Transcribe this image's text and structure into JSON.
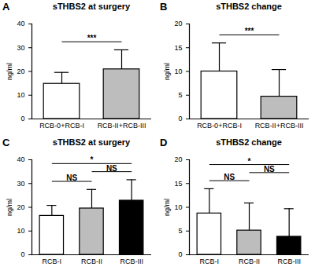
{
  "chart_data": [
    {
      "type": "bar",
      "panel": "A",
      "title": "sTHBS2 at surgery",
      "y_label": "ng/ml",
      "categories": [
        "RCB-0+RCB-I",
        "RCB-II+RCB-III"
      ],
      "values": [
        14.8,
        20.9
      ],
      "errors": [
        4.8,
        8.2
      ],
      "colors": [
        "#ffffff",
        "#bdbdbd"
      ],
      "ylim": [
        0,
        40
      ],
      "yticks": [
        0,
        10,
        20,
        30,
        40
      ],
      "annotations": [
        {
          "text": "***",
          "from": "RCB-0+RCB-I",
          "to": "RCB-II+RCB-III"
        }
      ]
    },
    {
      "type": "bar",
      "panel": "B",
      "title": "sTHBS2 change",
      "y_label": "ng/ml",
      "categories": [
        "RCB-0+RCB-I",
        "RCB-II+RCB-III"
      ],
      "values": [
        10.0,
        4.7
      ],
      "errors": [
        6.0,
        5.7
      ],
      "colors": [
        "#ffffff",
        "#bdbdbd"
      ],
      "ylim": [
        0,
        20
      ],
      "yticks": [
        0,
        5,
        10,
        15,
        20
      ],
      "annotations": [
        {
          "text": "***",
          "from": "RCB-0+RCB-I",
          "to": "RCB-II+RCB-III"
        }
      ]
    },
    {
      "type": "bar",
      "panel": "C",
      "title": "sTHBS2 at surgery",
      "y_label": "ng/ml",
      "categories": [
        "RCB-I",
        "RCB-II",
        "RCB-III"
      ],
      "values": [
        16.4,
        19.5,
        22.8
      ],
      "errors": [
        4.4,
        8.0,
        8.8
      ],
      "colors": [
        "#ffffff",
        "#bdbdbd",
        "#000000"
      ],
      "ylim": [
        0,
        40
      ],
      "yticks": [
        0,
        10,
        20,
        30,
        40
      ],
      "annotations": [
        {
          "text": "NS",
          "from": "RCB-I",
          "to": "RCB-II"
        },
        {
          "text": "NS",
          "from": "RCB-II",
          "to": "RCB-III"
        },
        {
          "text": "*",
          "from": "RCB-I",
          "to": "RCB-III"
        }
      ]
    },
    {
      "type": "bar",
      "panel": "D",
      "title": "sTHBS2 change",
      "y_label": "ng/ml",
      "categories": [
        "RCB-I",
        "RCB-II",
        "RCB-III"
      ],
      "values": [
        8.7,
        5.1,
        3.8
      ],
      "errors": [
        5.2,
        5.8,
        5.9
      ],
      "colors": [
        "#ffffff",
        "#bdbdbd",
        "#000000"
      ],
      "ylim": [
        0,
        20
      ],
      "yticks": [
        0,
        5,
        10,
        15,
        20
      ],
      "annotations": [
        {
          "text": "NS",
          "from": "RCB-I",
          "to": "RCB-II"
        },
        {
          "text": "NS",
          "from": "RCB-II",
          "to": "RCB-III"
        },
        {
          "text": "*",
          "from": "RCB-I",
          "to": "RCB-III"
        }
      ]
    }
  ]
}
